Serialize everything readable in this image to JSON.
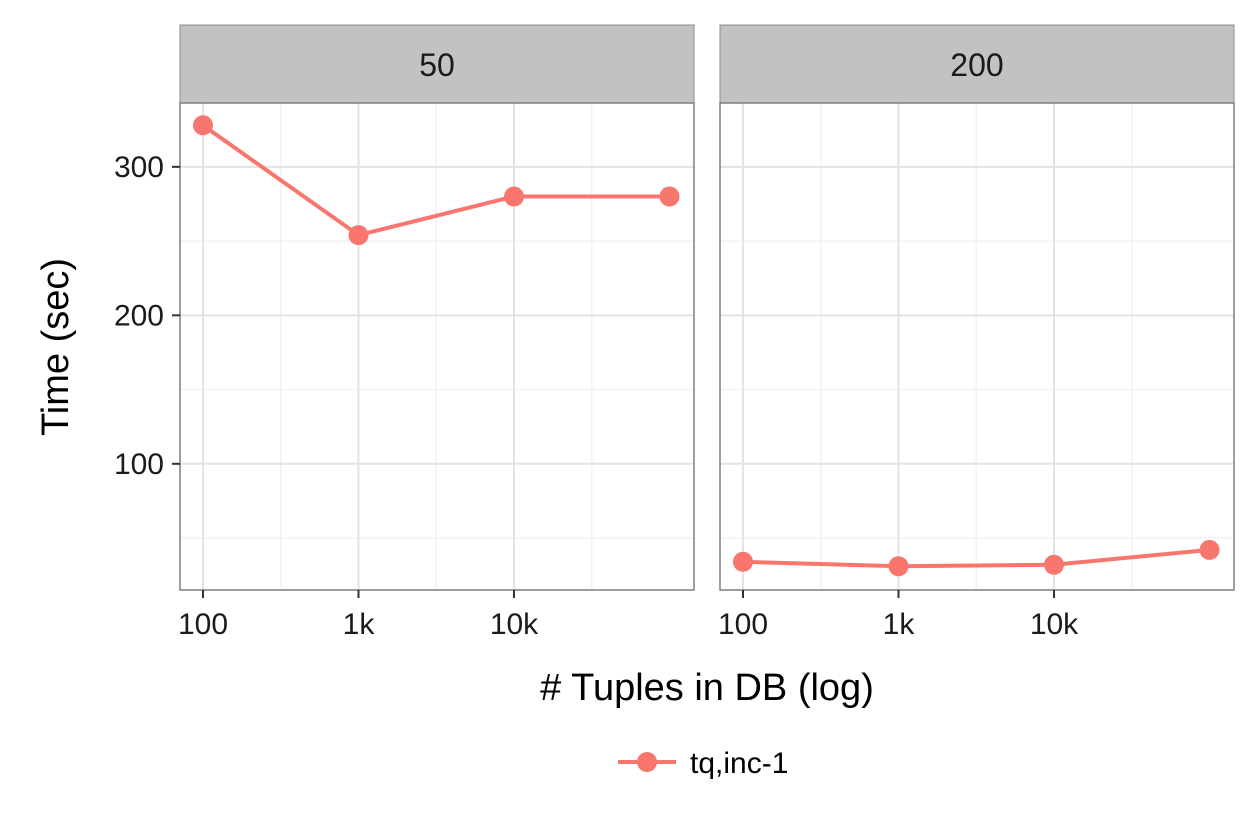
{
  "chart_data": {
    "type": "line",
    "xlabel": "# Tuples in DB (log)",
    "ylabel": "Time (sec)",
    "x_scale": "log",
    "x_ticks": [
      "100",
      "1k",
      "10k"
    ],
    "y_ticks": [
      100,
      200,
      300
    ],
    "ylim": [
      15,
      343
    ],
    "grid": true,
    "legend": {
      "placement": "bottom",
      "entries": [
        "tq,inc-1"
      ]
    },
    "series_color": "#F8766D",
    "facets": [
      {
        "label": "50",
        "series": [
          {
            "name": "tq,inc-1",
            "x": [
              100,
              1000,
              10000,
              100000
            ],
            "y": [
              328,
              254,
              280,
              280
            ]
          }
        ]
      },
      {
        "label": "200",
        "series": [
          {
            "name": "tq,inc-1",
            "x": [
              100,
              1000,
              10000,
              100000
            ],
            "y": [
              34,
              31,
              32,
              42
            ]
          }
        ]
      }
    ]
  }
}
